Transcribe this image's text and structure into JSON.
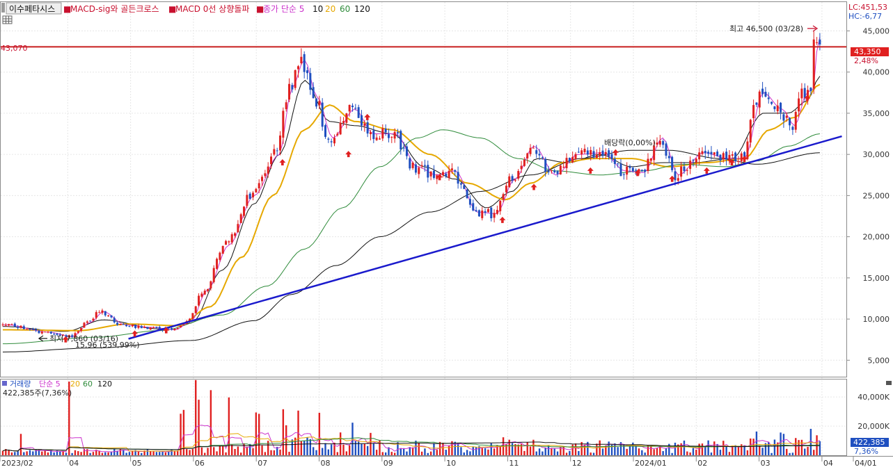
{
  "colors": {
    "up": "#e02020",
    "down": "#1f4fc0",
    "ma5": "#cc33cc",
    "ma10": "#111111",
    "ma20": "#e6a800",
    "ma60": "#2e8b3a",
    "ma120": "#111111",
    "ref_line": "#c81e1e",
    "trend_line": "#1a1acc",
    "signal_arrow": "#e02020",
    "grid": "#e6e6e6",
    "frame": "#8a8a8a",
    "axis_text": "#333333",
    "price_tag_bg": "#e02020",
    "volume_tag_bg": "#1f4fc0"
  },
  "header": {
    "tab_label": "이수페타시스",
    "indicators": [
      {
        "label": "MACD-sig와 골든크로스",
        "color": "#c8102e"
      },
      {
        "label": "MACD 0선 상향돌파",
        "color": "#c8102e"
      }
    ],
    "ma_title": "종가 단순 5",
    "ma_periods": [
      {
        "label": "10",
        "color": "#111111"
      },
      {
        "label": "20",
        "color": "#e6a800"
      },
      {
        "label": "60",
        "color": "#2e8b3a"
      },
      {
        "label": "120",
        "color": "#111111"
      }
    ],
    "lc_readout": "LC:451,53",
    "hc_readout": "HC:-6,77"
  },
  "price_panel": {
    "ref_line_label": "43,070",
    "current_price_tag": "43,350",
    "current_change": "2,48%",
    "high_annotation": "최고 46,500 (03/28)",
    "low_annotation": "최저 7,860 (03/16)",
    "low_change": "15,96 (539,99%)",
    "ex_dividend_label": "배당락(0,00%)"
  },
  "volume_panel": {
    "title": "거래량",
    "ma_title": "단순 5",
    "ma_periods": [
      {
        "label": "20",
        "color": "#e6a800"
      },
      {
        "label": "60",
        "color": "#2e8b3a"
      },
      {
        "label": "120",
        "color": "#111111"
      }
    ],
    "current_readout": "422,385주(7,36%)",
    "current_tag": "422,385",
    "current_pct": "7,36%"
  },
  "chart_data": {
    "type": "candlestick",
    "ref_price": 43070,
    "price_axis": {
      "ylim": [
        3000,
        48500
      ],
      "ticks": [
        {
          "value": 5000,
          "label": "5,000"
        },
        {
          "value": 10000,
          "label": "10,000"
        },
        {
          "value": 15000,
          "label": "15,000"
        },
        {
          "value": 20000,
          "label": "20,000"
        },
        {
          "value": 25000,
          "label": "25,000"
        },
        {
          "value": 30000,
          "label": "30,000"
        },
        {
          "value": 35000,
          "label": "35,000"
        },
        {
          "value": 40000,
          "label": "40,000"
        },
        {
          "value": 45000,
          "label": "45,000"
        }
      ]
    },
    "volume_axis": {
      "ylim": [
        0,
        52000000
      ],
      "ticks": [
        {
          "value": 20000000,
          "label": "20,000K"
        },
        {
          "value": 40000000,
          "label": "40,000K"
        }
      ]
    },
    "x_axis": {
      "ticks": [
        "2023/02",
        "04",
        "05",
        "06",
        "07",
        "08",
        "09",
        "10",
        "11",
        "12",
        "2024/01",
        "02",
        "03",
        "04",
        "04/01"
      ]
    },
    "price_path": [
      {
        "m": 0,
        "p": 9300
      },
      {
        "m": 0.7,
        "p": 8400
      },
      {
        "m": 1.05,
        "p": 7860
      },
      {
        "m": 1.35,
        "p": 9600
      },
      {
        "m": 1.55,
        "p": 10900
      },
      {
        "m": 1.9,
        "p": 9300
      },
      {
        "m": 2.3,
        "p": 9000
      },
      {
        "m": 2.7,
        "p": 8700
      },
      {
        "m": 2.95,
        "p": 9800
      },
      {
        "m": 3.2,
        "p": 13500
      },
      {
        "m": 3.55,
        "p": 19000
      },
      {
        "m": 3.95,
        "p": 25000
      },
      {
        "m": 4.35,
        "p": 30000
      },
      {
        "m": 4.55,
        "p": 38000
      },
      {
        "m": 4.75,
        "p": 41500
      },
      {
        "m": 4.95,
        "p": 37000
      },
      {
        "m": 5.2,
        "p": 32000
      },
      {
        "m": 5.55,
        "p": 35500
      },
      {
        "m": 5.85,
        "p": 32500
      },
      {
        "m": 6.2,
        "p": 32500
      },
      {
        "m": 6.55,
        "p": 28500
      },
      {
        "m": 6.85,
        "p": 27500
      },
      {
        "m": 7.15,
        "p": 28000
      },
      {
        "m": 7.5,
        "p": 23000
      },
      {
        "m": 7.8,
        "p": 22800
      },
      {
        "m": 8.1,
        "p": 27000
      },
      {
        "m": 8.4,
        "p": 31000
      },
      {
        "m": 8.75,
        "p": 27500
      },
      {
        "m": 9.1,
        "p": 30000
      },
      {
        "m": 9.5,
        "p": 30200
      },
      {
        "m": 9.85,
        "p": 28000
      },
      {
        "m": 10.15,
        "p": 27800
      },
      {
        "m": 10.45,
        "p": 32000
      },
      {
        "m": 10.7,
        "p": 27500
      },
      {
        "m": 11.1,
        "p": 30200
      },
      {
        "m": 11.5,
        "p": 29500
      },
      {
        "m": 11.75,
        "p": 29500
      },
      {
        "m": 12.05,
        "p": 37500
      },
      {
        "m": 12.35,
        "p": 35500
      },
      {
        "m": 12.55,
        "p": 33500
      },
      {
        "m": 12.75,
        "p": 37500
      },
      {
        "m": 12.85,
        "p": 38000
      },
      {
        "m": 12.93,
        "p": 44500
      },
      {
        "m": 13.0,
        "p": 43350
      }
    ],
    "moving_averages": [
      {
        "name": "10",
        "color": "#111111",
        "path": [
          {
            "m": 0,
            "p": 9100
          },
          {
            "m": 1,
            "p": 8500
          },
          {
            "m": 1.6,
            "p": 9900
          },
          {
            "m": 2.5,
            "p": 8800
          },
          {
            "m": 3.0,
            "p": 9500
          },
          {
            "m": 3.5,
            "p": 16000
          },
          {
            "m": 4.0,
            "p": 24000
          },
          {
            "m": 4.4,
            "p": 30000
          },
          {
            "m": 4.8,
            "p": 39000
          },
          {
            "m": 5.2,
            "p": 34000
          },
          {
            "m": 5.6,
            "p": 33500
          },
          {
            "m": 6.2,
            "p": 32500
          },
          {
            "m": 6.7,
            "p": 28500
          },
          {
            "m": 7.2,
            "p": 27000
          },
          {
            "m": 7.7,
            "p": 23500
          },
          {
            "m": 8.1,
            "p": 25500
          },
          {
            "m": 8.5,
            "p": 29500
          },
          {
            "m": 9.0,
            "p": 29000
          },
          {
            "m": 9.5,
            "p": 30000
          },
          {
            "m": 10.0,
            "p": 28500
          },
          {
            "m": 10.5,
            "p": 29000
          },
          {
            "m": 11.0,
            "p": 29000
          },
          {
            "m": 11.6,
            "p": 29500
          },
          {
            "m": 12.1,
            "p": 35000
          },
          {
            "m": 12.5,
            "p": 35000
          },
          {
            "m": 12.8,
            "p": 36500
          },
          {
            "m": 13.0,
            "p": 39500
          }
        ]
      },
      {
        "name": "20",
        "color": "#e6a800",
        "path": [
          {
            "m": 0,
            "p": 8700
          },
          {
            "m": 1.2,
            "p": 8600
          },
          {
            "m": 2.0,
            "p": 9400
          },
          {
            "m": 2.8,
            "p": 9200
          },
          {
            "m": 3.3,
            "p": 11500
          },
          {
            "m": 3.8,
            "p": 17500
          },
          {
            "m": 4.3,
            "p": 25000
          },
          {
            "m": 4.8,
            "p": 33000
          },
          {
            "m": 5.2,
            "p": 36000
          },
          {
            "m": 5.6,
            "p": 34000
          },
          {
            "m": 6.2,
            "p": 33000
          },
          {
            "m": 6.8,
            "p": 30000
          },
          {
            "m": 7.4,
            "p": 26500
          },
          {
            "m": 8.0,
            "p": 24500
          },
          {
            "m": 8.4,
            "p": 26500
          },
          {
            "m": 8.9,
            "p": 29000
          },
          {
            "m": 9.4,
            "p": 29500
          },
          {
            "m": 10.0,
            "p": 29500
          },
          {
            "m": 10.6,
            "p": 28500
          },
          {
            "m": 11.2,
            "p": 29000
          },
          {
            "m": 11.8,
            "p": 29500
          },
          {
            "m": 12.2,
            "p": 33000
          },
          {
            "m": 12.6,
            "p": 34500
          },
          {
            "m": 13.0,
            "p": 38500
          }
        ]
      },
      {
        "name": "60",
        "color": "#2e8b3a",
        "path": [
          {
            "m": 0,
            "p": 7000
          },
          {
            "m": 1.5,
            "p": 7800
          },
          {
            "m": 2.5,
            "p": 8600
          },
          {
            "m": 3.5,
            "p": 10500
          },
          {
            "m": 4.2,
            "p": 14000
          },
          {
            "m": 4.8,
            "p": 18500
          },
          {
            "m": 5.4,
            "p": 23500
          },
          {
            "m": 6.0,
            "p": 28500
          },
          {
            "m": 6.6,
            "p": 32000
          },
          {
            "m": 7.0,
            "p": 33000
          },
          {
            "m": 7.6,
            "p": 32000
          },
          {
            "m": 8.2,
            "p": 29500
          },
          {
            "m": 8.8,
            "p": 28000
          },
          {
            "m": 9.5,
            "p": 27500
          },
          {
            "m": 10.2,
            "p": 28000
          },
          {
            "m": 10.8,
            "p": 28800
          },
          {
            "m": 11.5,
            "p": 28500
          },
          {
            "m": 12.0,
            "p": 29200
          },
          {
            "m": 12.5,
            "p": 31000
          },
          {
            "m": 13.0,
            "p": 32500
          }
        ]
      },
      {
        "name": "120",
        "color": "#111111",
        "path": [
          {
            "m": 0,
            "p": 6000
          },
          {
            "m": 1.5,
            "p": 6500
          },
          {
            "m": 3.0,
            "p": 7400
          },
          {
            "m": 4.0,
            "p": 9800
          },
          {
            "m": 4.6,
            "p": 13000
          },
          {
            "m": 5.3,
            "p": 16500
          },
          {
            "m": 6.0,
            "p": 20000
          },
          {
            "m": 6.8,
            "p": 23000
          },
          {
            "m": 7.6,
            "p": 25500
          },
          {
            "m": 8.4,
            "p": 27500
          },
          {
            "m": 9.2,
            "p": 29500
          },
          {
            "m": 10.0,
            "p": 30500
          },
          {
            "m": 10.6,
            "p": 30500
          },
          {
            "m": 11.4,
            "p": 29500
          },
          {
            "m": 12.0,
            "p": 28800
          },
          {
            "m": 13.0,
            "p": 30200
          }
        ]
      }
    ],
    "trend_line": {
      "m1": 2.0,
      "p1": 7600,
      "m2": 13.35,
      "p2": 32200
    },
    "signal_markers": [
      {
        "m": 1.0,
        "p": 7500
      },
      {
        "m": 2.1,
        "p": 8200
      },
      {
        "m": 2.6,
        "p": 8600
      },
      {
        "m": 4.45,
        "p": 29000
      },
      {
        "m": 5.5,
        "p": 30000
      },
      {
        "m": 5.8,
        "p": 34500
      },
      {
        "m": 6.95,
        "p": 27200
      },
      {
        "m": 7.95,
        "p": 22000
      },
      {
        "m": 8.45,
        "p": 26000
      },
      {
        "m": 9.35,
        "p": 28000
      },
      {
        "m": 9.75,
        "p": 30200
      },
      {
        "m": 10.1,
        "p": 27700
      },
      {
        "m": 10.65,
        "p": 27000
      },
      {
        "m": 11.2,
        "p": 28000
      },
      {
        "m": 11.6,
        "p": 29000
      },
      {
        "m": 11.8,
        "p": 29400
      },
      {
        "m": 12.8,
        "p": 36800
      }
    ],
    "volume_spikes": [
      {
        "m": 1.05,
        "v": 49000000
      },
      {
        "m": 2.85,
        "v": 32000000
      },
      {
        "m": 3.1,
        "v": 47000000
      },
      {
        "m": 3.3,
        "v": 45000000
      },
      {
        "m": 3.6,
        "v": 43000000
      },
      {
        "m": 4.05,
        "v": 30000000
      },
      {
        "m": 4.45,
        "v": 32000000
      },
      {
        "m": 4.7,
        "v": 38000000
      },
      {
        "m": 5.05,
        "v": 32000000
      },
      {
        "m": 5.55,
        "v": 24000000
      },
      {
        "m": 12.0,
        "v": 20000000
      },
      {
        "m": 12.4,
        "v": 17000000
      },
      {
        "m": 12.85,
        "v": 19000000
      }
    ]
  }
}
